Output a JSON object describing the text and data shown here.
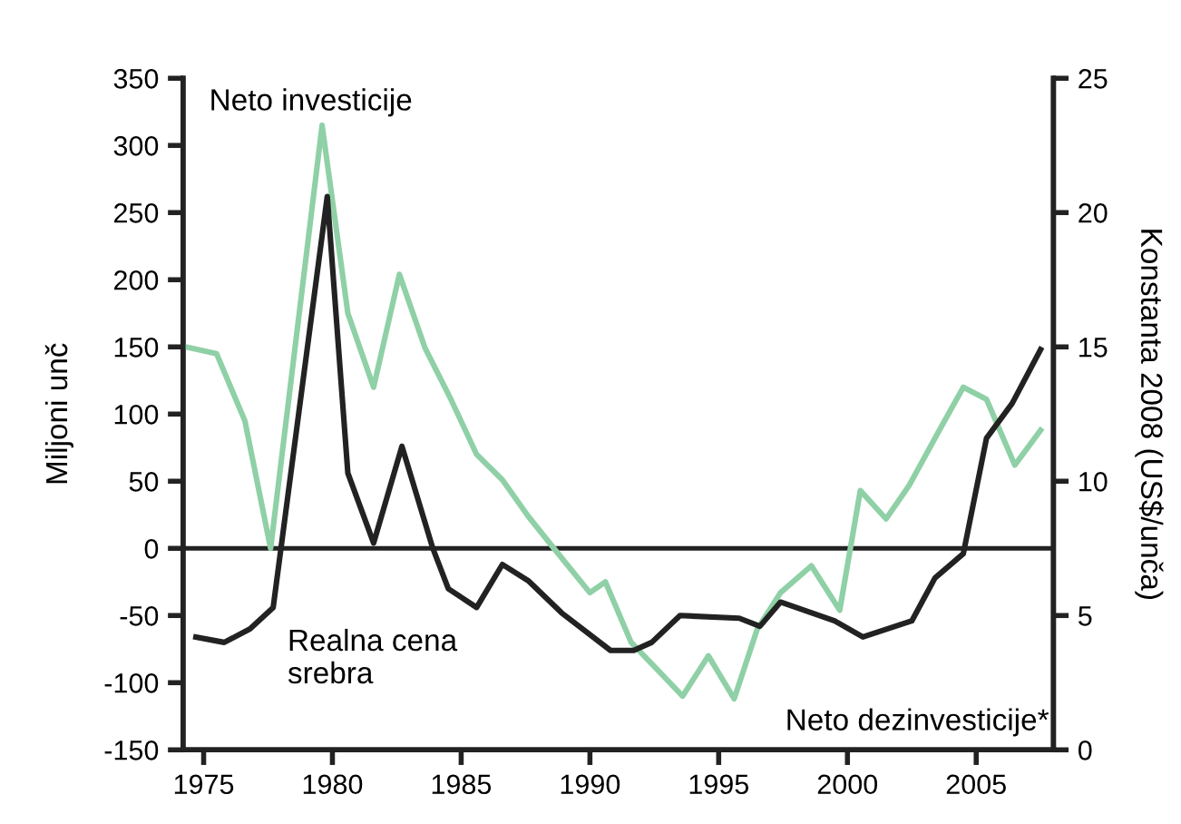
{
  "chart_data": {
    "type": "line",
    "ylabel": "Miljoni unč",
    "y2label": "Konstanta 2008 (US$/unča)",
    "xlim": [
      1974.2,
      2008
    ],
    "xticks": [
      1975,
      1980,
      1985,
      1990,
      1995,
      2000,
      2005
    ],
    "ylim": [
      -150,
      350
    ],
    "yticks": [
      -150,
      -100,
      -50,
      0,
      50,
      100,
      150,
      200,
      250,
      300,
      350
    ],
    "y2lim": [
      0,
      25
    ],
    "y2ticks": [
      0,
      5,
      10,
      15,
      20,
      25
    ],
    "grid": false,
    "legend": false,
    "line_style": "solid",
    "marker": "none",
    "ref_lines": [
      {
        "axis": "y",
        "value": 0,
        "color": "#222222"
      }
    ],
    "annotations": [
      "Neto investicije",
      "Realna cena\nsrebra",
      "Neto dezinvesticije*"
    ],
    "series": [
      {
        "color": "#8fd0a6",
        "x": [
          1974.3,
          1975.5,
          1976.6,
          1977.6,
          1979.6,
          1980.6,
          1981.6,
          1982.6,
          1983.6,
          1984.6,
          1985.6,
          1986.6,
          1987.6,
          1988.6,
          1990.0,
          1990.6,
          1991.6,
          1992.6,
          1993.6,
          1994.6,
          1995.6,
          1996.5,
          1997.4,
          1998.6,
          1999.7,
          2000.5,
          2001.5,
          2002.4,
          2003.6,
          2004.5,
          2005.4,
          2006.5,
          2007.5
        ],
        "values": [
          150,
          145,
          95,
          0,
          315,
          175,
          120,
          204,
          149,
          111,
          70,
          51,
          24,
          0,
          -33,
          -25,
          -70,
          -90,
          -110,
          -80,
          -112,
          -60,
          -33,
          -13,
          -46,
          43,
          22,
          47,
          89,
          120,
          111,
          62,
          88
        ]
      },
      {
        "color": "#222222",
        "axis": "y2",
        "x": [
          1974.7,
          1975.8,
          1976.8,
          1977.7,
          1979.8,
          1980.6,
          1981.6,
          1982.7,
          1983.9,
          1984.5,
          1985.6,
          1986.6,
          1987.6,
          1988.9,
          1990.8,
          1991.7,
          1992.4,
          1993.5,
          1995.8,
          1996.6,
          1997.4,
          1999.5,
          2000.6,
          2002.5,
          2003.4,
          2004.5,
          2005.4,
          2006.4,
          2007.5
        ],
        "values": [
          4.2,
          4.0,
          4.5,
          5.3,
          20.6,
          10.3,
          7.7,
          11.3,
          7.5,
          6.0,
          5.3,
          6.9,
          6.3,
          5.1,
          3.7,
          3.7,
          4.0,
          5.0,
          4.9,
          4.6,
          5.5,
          4.8,
          4.2,
          4.8,
          6.4,
          7.3,
          11.6,
          12.9,
          14.9
        ]
      }
    ]
  }
}
